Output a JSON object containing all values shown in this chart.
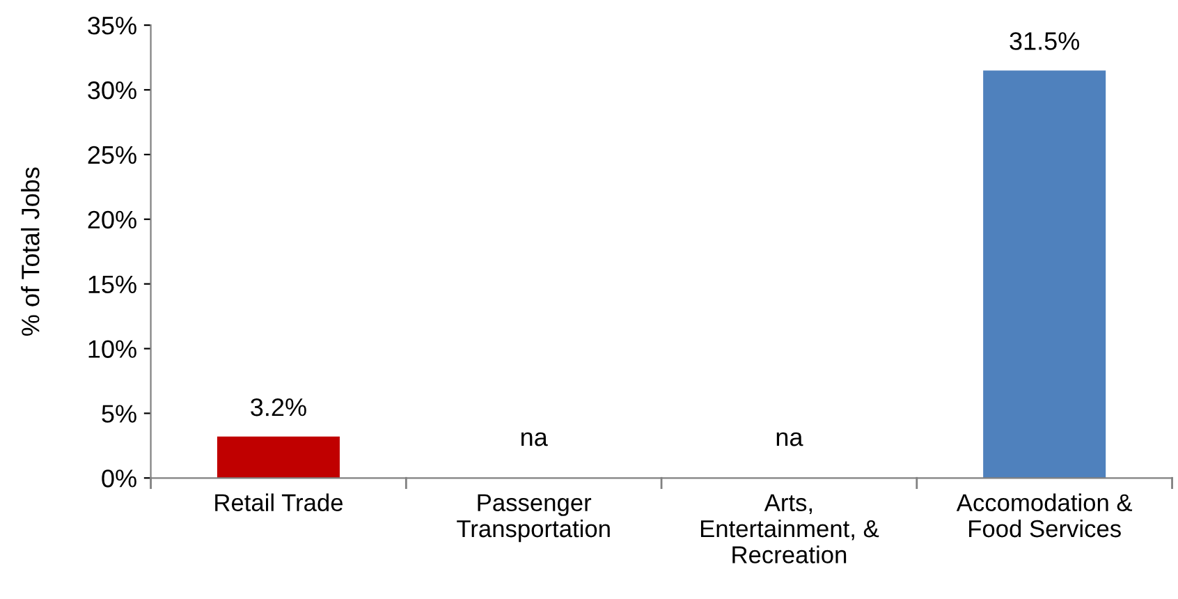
{
  "chart_data": {
    "type": "bar",
    "ylabel": "% of Total Jobs",
    "categories": [
      "Retail Trade",
      "Passenger\nTransportation",
      "Arts,\nEntertainment, &\nRecreation",
      "Accomodation &\nFood Services"
    ],
    "values": [
      3.2,
      null,
      null,
      31.5
    ],
    "colors": [
      "#c00000",
      "#4f81bd",
      "#4f81bd",
      "#4f81bd"
    ],
    "value_labels": [
      "3.2%",
      "na",
      "na",
      "31.5%"
    ],
    "ylim": [
      0,
      35
    ],
    "yticks": [
      {
        "value": 0,
        "label": "0%"
      },
      {
        "value": 5,
        "label": "5%"
      },
      {
        "value": 10,
        "label": "10%"
      },
      {
        "value": 15,
        "label": "15%"
      },
      {
        "value": 20,
        "label": "20%"
      },
      {
        "value": 25,
        "label": "25%"
      },
      {
        "value": 30,
        "label": "30%"
      },
      {
        "value": 35,
        "label": "35%"
      }
    ],
    "grid": false,
    "legend": false
  }
}
